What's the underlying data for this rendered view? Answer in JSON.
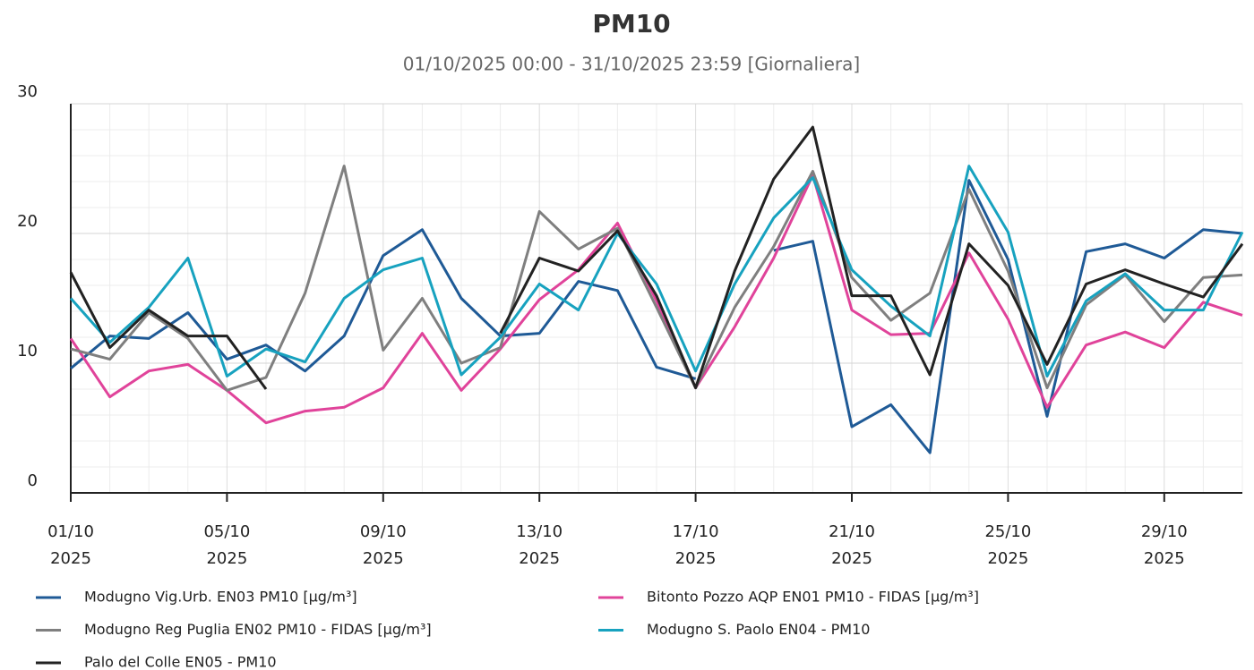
{
  "chart_data": {
    "type": "line",
    "title": "PM10",
    "subtitle": "01/10/2025 00:00 - 31/10/2025 23:59 [Giornaliera]",
    "categories": [
      "01/10\n2025",
      null,
      null,
      null,
      "05/10\n2025",
      null,
      null,
      null,
      "09/10\n2025",
      null,
      null,
      null,
      "13/10\n2025",
      null,
      null,
      null,
      "17/10\n2025",
      null,
      null,
      null,
      "21/10\n2025",
      null,
      null,
      null,
      "25/10\n2025",
      null,
      null,
      null,
      "29/10\n2025",
      null,
      null
    ],
    "ylim": [
      0,
      30
    ],
    "yticks": [
      0,
      10,
      20,
      30
    ],
    "grid": true,
    "series": [
      {
        "name": "Modugno Vig.Urb. EN03 PM10 [µg/m³]",
        "color": "#1f5a96",
        "values": [
          9.6,
          12.1,
          11.9,
          13.9,
          10.3,
          11.4,
          9.4,
          12.1,
          18.3,
          20.3,
          15.0,
          12.1,
          12.3,
          16.3,
          15.6,
          9.7,
          8.8,
          null,
          18.7,
          19.4,
          5.1,
          6.8,
          3.1,
          24.1,
          18.0,
          5.9,
          18.6,
          19.2,
          18.1,
          20.3,
          20.0
        ]
      },
      {
        "name": "Bitonto Pozzo AQP EN01 PM10 - FIDAS [µg/m³]",
        "color": "#e0439a",
        "values": [
          11.9,
          7.4,
          9.4,
          9.9,
          7.9,
          5.4,
          6.3,
          6.6,
          8.1,
          12.3,
          7.9,
          11.1,
          14.9,
          17.2,
          20.8,
          14.8,
          8.1,
          12.8,
          18.1,
          24.5,
          14.1,
          12.2,
          12.3,
          18.5,
          13.4,
          6.6,
          11.4,
          12.4,
          11.2,
          14.7,
          13.7
        ]
      },
      {
        "name": "Modugno Reg Puglia EN02 PM10 - FIDAS [µg/m³]",
        "color": "#7f7f7f",
        "values": [
          11.1,
          10.3,
          13.9,
          11.9,
          7.9,
          8.9,
          15.4,
          25.2,
          11.0,
          15.0,
          10.0,
          11.2,
          21.7,
          18.8,
          20.4,
          14.3,
          8.1,
          14.3,
          19.0,
          24.8,
          16.6,
          13.3,
          15.4,
          23.4,
          17.1,
          8.1,
          14.5,
          16.8,
          13.2,
          16.6,
          16.8
        ]
      },
      {
        "name": "Modugno S. Paolo EN04 - PM10",
        "color": "#17a2bf",
        "values": [
          15.0,
          11.6,
          14.3,
          18.1,
          9.0,
          11.1,
          10.1,
          15.0,
          17.2,
          18.1,
          9.1,
          12.0,
          16.1,
          14.1,
          20.0,
          16.1,
          9.4,
          16.1,
          21.2,
          24.3,
          17.2,
          14.4,
          12.1,
          25.2,
          20.1,
          9.0,
          14.8,
          16.9,
          14.1,
          14.1,
          20.1
        ]
      },
      {
        "name": "Palo del Colle EN05 - PM10",
        "color": "#222222",
        "values": [
          17.0,
          11.2,
          14.1,
          12.1,
          12.1,
          8.0,
          null,
          null,
          null,
          null,
          null,
          12.3,
          18.1,
          17.1,
          20.2,
          15.2,
          8.1,
          17.1,
          24.2,
          28.2,
          15.2,
          15.2,
          9.1,
          19.2,
          16.0,
          9.9,
          16.1,
          17.2,
          16.1,
          15.1,
          19.2
        ]
      }
    ]
  }
}
